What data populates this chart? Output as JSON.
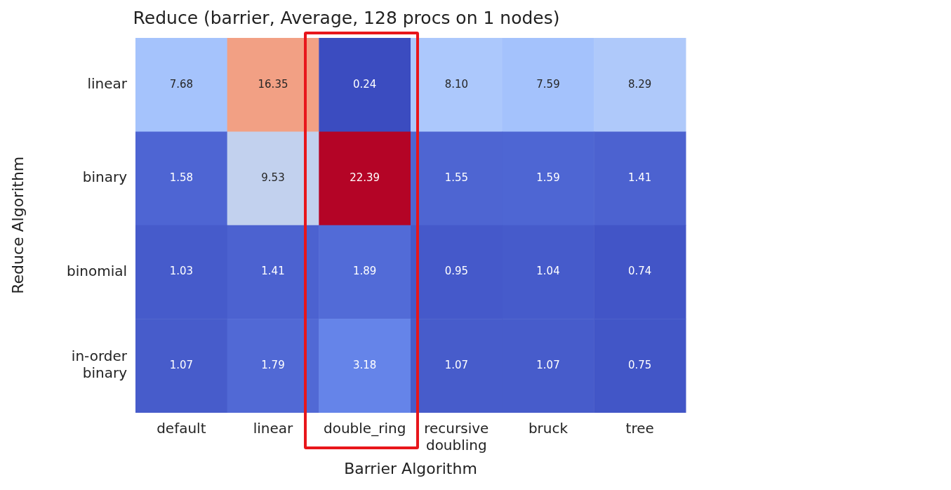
{
  "chart_data": {
    "type": "heatmap",
    "title": "Reduce (barrier, Average, 128 procs on 1 nodes)",
    "xlabel": "Barrier Algorithm",
    "ylabel": "Reduce Algorithm",
    "categories": [
      "default",
      "linear",
      "double_ring",
      "recursive\ndoubling",
      "bruck",
      "tree"
    ],
    "y_categories": [
      "linear",
      "binary",
      "binomial",
      "in-order\nbinary"
    ],
    "cells": [
      [
        7.68,
        16.35,
        0.24,
        8.1,
        7.59,
        8.29
      ],
      [
        1.58,
        9.53,
        22.39,
        1.55,
        1.59,
        1.41
      ],
      [
        1.03,
        1.41,
        1.89,
        0.95,
        1.04,
        0.74
      ],
      [
        1.07,
        1.79,
        3.18,
        1.07,
        1.07,
        0.75
      ]
    ],
    "cell_labels": [
      [
        "7.68",
        "16.35",
        "0.24",
        "8.10",
        "7.59",
        "8.29"
      ],
      [
        "1.58",
        "9.53",
        "22.39",
        "1.55",
        "1.59",
        "1.41"
      ],
      [
        "1.03",
        "1.41",
        "1.89",
        "0.95",
        "1.04",
        "0.74"
      ],
      [
        "1.07",
        "1.79",
        "3.18",
        "1.07",
        "1.07",
        "0.75"
      ]
    ]
  }
}
